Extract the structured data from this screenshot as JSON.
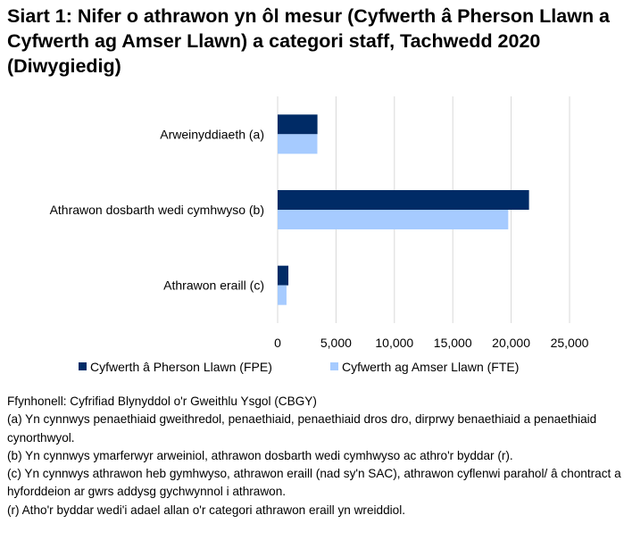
{
  "chart_data": {
    "type": "bar",
    "orientation": "horizontal",
    "title": "Siart 1: Nifer o athrawon yn ôl mesur (Cyfwerth â Pherson Llawn a Cyfwerth ag Amser Llawn) a categori staff, Tachwedd 2020 (Diwygiedig)",
    "categories": [
      "Arweinyddiaeth (a)",
      "Athrawon dosbarth wedi cymhwyso (b)",
      "Athrawon eraill (c)"
    ],
    "series": [
      {
        "name": "Cyfwerth â Pherson Llawn (FPE)",
        "color": "#002b66",
        "values": [
          3410,
          21530,
          920
        ]
      },
      {
        "name": "Cyfwerth ag Amser Llawn (FTE)",
        "color": "#a6cbff",
        "values": [
          3400,
          19750,
          760
        ]
      }
    ],
    "xlim": [
      0,
      25000
    ],
    "xticks": [
      "0",
      "5,000",
      "10,000",
      "15,000",
      "20,000",
      "25,000"
    ],
    "xtick_values": [
      0,
      5000,
      10000,
      15000,
      20000,
      25000
    ],
    "grid": "vertical",
    "legend_position": "bottom"
  },
  "notes": [
    "Ffynhonell: Cyfrifiad Blynyddol o'r Gweithlu Ysgol (CBGY)",
    "(a) Yn cynnwys penaethiaid gweithredol, penaethiaid, penaethiaid dros dro, dirprwy benaethiaid a penaethiaid cynorthwyol.",
    "(b) Yn cynnwys ymarferwyr arweiniol, athrawon dosbarth wedi cymhwyso ac athro'r byddar (r).",
    "(c) Yn cynnwys athrawon heb gymhwyso, athrawon eraill (nad sy'n SAC), athrawon cyflenwi parahol/ â chontract a hyforddeion ar gwrs addysg gychwynnol i athrawon.",
    "(r) Atho'r byddar wedi'i adael allan o'r categori athrawon eraill yn wreiddiol."
  ]
}
